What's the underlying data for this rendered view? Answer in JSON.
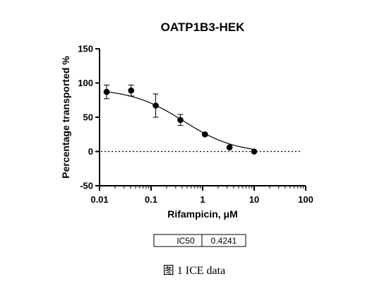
{
  "chart_data": {
    "type": "scatter",
    "title": "OATP1B3-HEK",
    "xlabel": "Rifampicin, μM",
    "ylabel": "Percentage transported %",
    "x_scale": "log",
    "xlim": [
      0.01,
      100
    ],
    "ylim": [
      -50,
      150
    ],
    "x_ticks": [
      0.01,
      0.1,
      1,
      10,
      100
    ],
    "x_tick_labels": [
      "0.01",
      "0.1",
      "1",
      "10",
      "100"
    ],
    "y_ticks": [
      -50,
      0,
      50,
      100,
      150
    ],
    "y_tick_labels": [
      "-50",
      "0",
      "50",
      "100",
      "150"
    ],
    "zero_reference_line": "dotted",
    "grid": false,
    "series": [
      {
        "points": [
          {
            "x": 0.0137,
            "y": 87,
            "err": 10
          },
          {
            "x": 0.041,
            "y": 89,
            "err": 8
          },
          {
            "x": 0.123,
            "y": 67,
            "err": 17
          },
          {
            "x": 0.37,
            "y": 46,
            "err": 8
          },
          {
            "x": 1.11,
            "y": 25,
            "err": 2
          },
          {
            "x": 3.33,
            "y": 6,
            "err": 1
          },
          {
            "x": 10,
            "y": 0,
            "err": 0
          }
        ],
        "fit": {
          "model": "four-parameter logistic",
          "top": 92,
          "bottom": -3,
          "ic50": 0.4241,
          "hill": 0.85
        }
      }
    ]
  },
  "results_table": {
    "label": "IC50",
    "value": "0.4241"
  },
  "caption": "图 1 ICE data"
}
